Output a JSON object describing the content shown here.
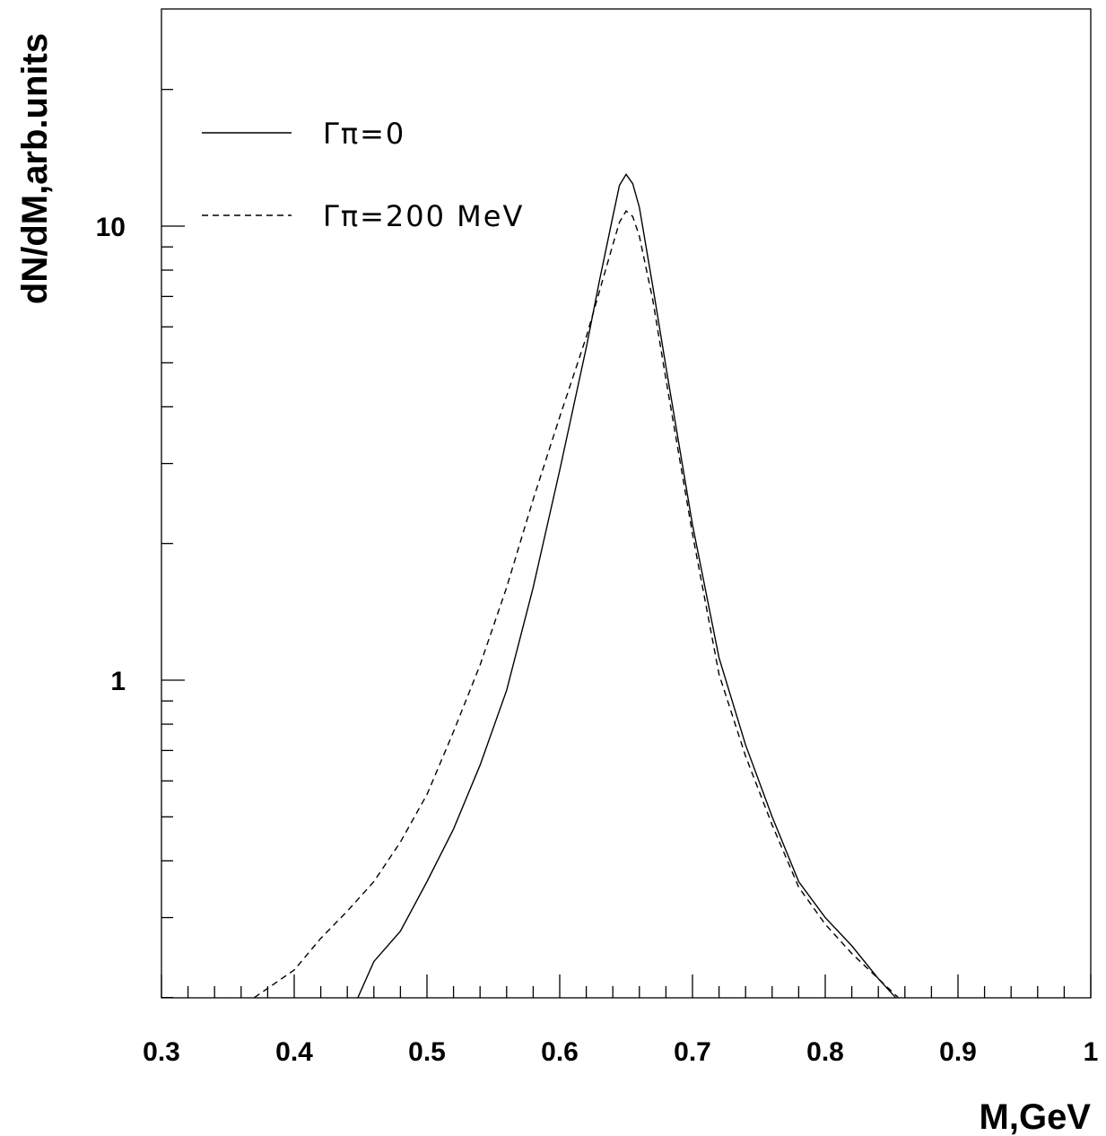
{
  "chart_data": {
    "type": "line",
    "title": "",
    "xlabel": "M,GeV",
    "ylabel": "dN/dM,arb.units",
    "xlim": [
      0.3,
      1.0
    ],
    "ylim": [
      0.2,
      25
    ],
    "yscale": "log",
    "x_ticks": [
      "0.3",
      "0.4",
      "0.5",
      "0.6",
      "0.7",
      "0.8",
      "0.9",
      "1"
    ],
    "y_ticks": [
      "1",
      "10"
    ],
    "legend_position": "top-left",
    "series": [
      {
        "name": "Γπ=0",
        "style": "solid",
        "x": [
          0.448,
          0.46,
          0.48,
          0.5,
          0.52,
          0.54,
          0.56,
          0.58,
          0.6,
          0.62,
          0.63,
          0.64,
          0.645,
          0.65,
          0.655,
          0.66,
          0.67,
          0.68,
          0.7,
          0.72,
          0.74,
          0.76,
          0.78,
          0.8,
          0.82,
          0.84,
          0.853
        ],
        "y": [
          0.2,
          0.24,
          0.28,
          0.36,
          0.47,
          0.65,
          0.95,
          1.6,
          2.9,
          5.4,
          7.6,
          10.5,
          12.3,
          13.0,
          12.4,
          11.0,
          7.4,
          4.9,
          2.2,
          1.12,
          0.72,
          0.5,
          0.36,
          0.3,
          0.26,
          0.22,
          0.2
        ]
      },
      {
        "name": "Γπ=200 MeV",
        "style": "dashed",
        "x": [
          0.37,
          0.4,
          0.42,
          0.44,
          0.46,
          0.48,
          0.5,
          0.52,
          0.54,
          0.56,
          0.58,
          0.6,
          0.62,
          0.63,
          0.64,
          0.645,
          0.65,
          0.655,
          0.66,
          0.67,
          0.68,
          0.7,
          0.72,
          0.74,
          0.76,
          0.78,
          0.8,
          0.82,
          0.84,
          0.855
        ],
        "y": [
          0.2,
          0.23,
          0.27,
          0.31,
          0.36,
          0.44,
          0.56,
          0.77,
          1.08,
          1.6,
          2.5,
          3.8,
          5.7,
          7.2,
          9.1,
          10.2,
          10.8,
          10.5,
          9.5,
          6.9,
          4.6,
          2.1,
          1.03,
          0.68,
          0.48,
          0.35,
          0.29,
          0.25,
          0.22,
          0.2
        ]
      }
    ]
  }
}
